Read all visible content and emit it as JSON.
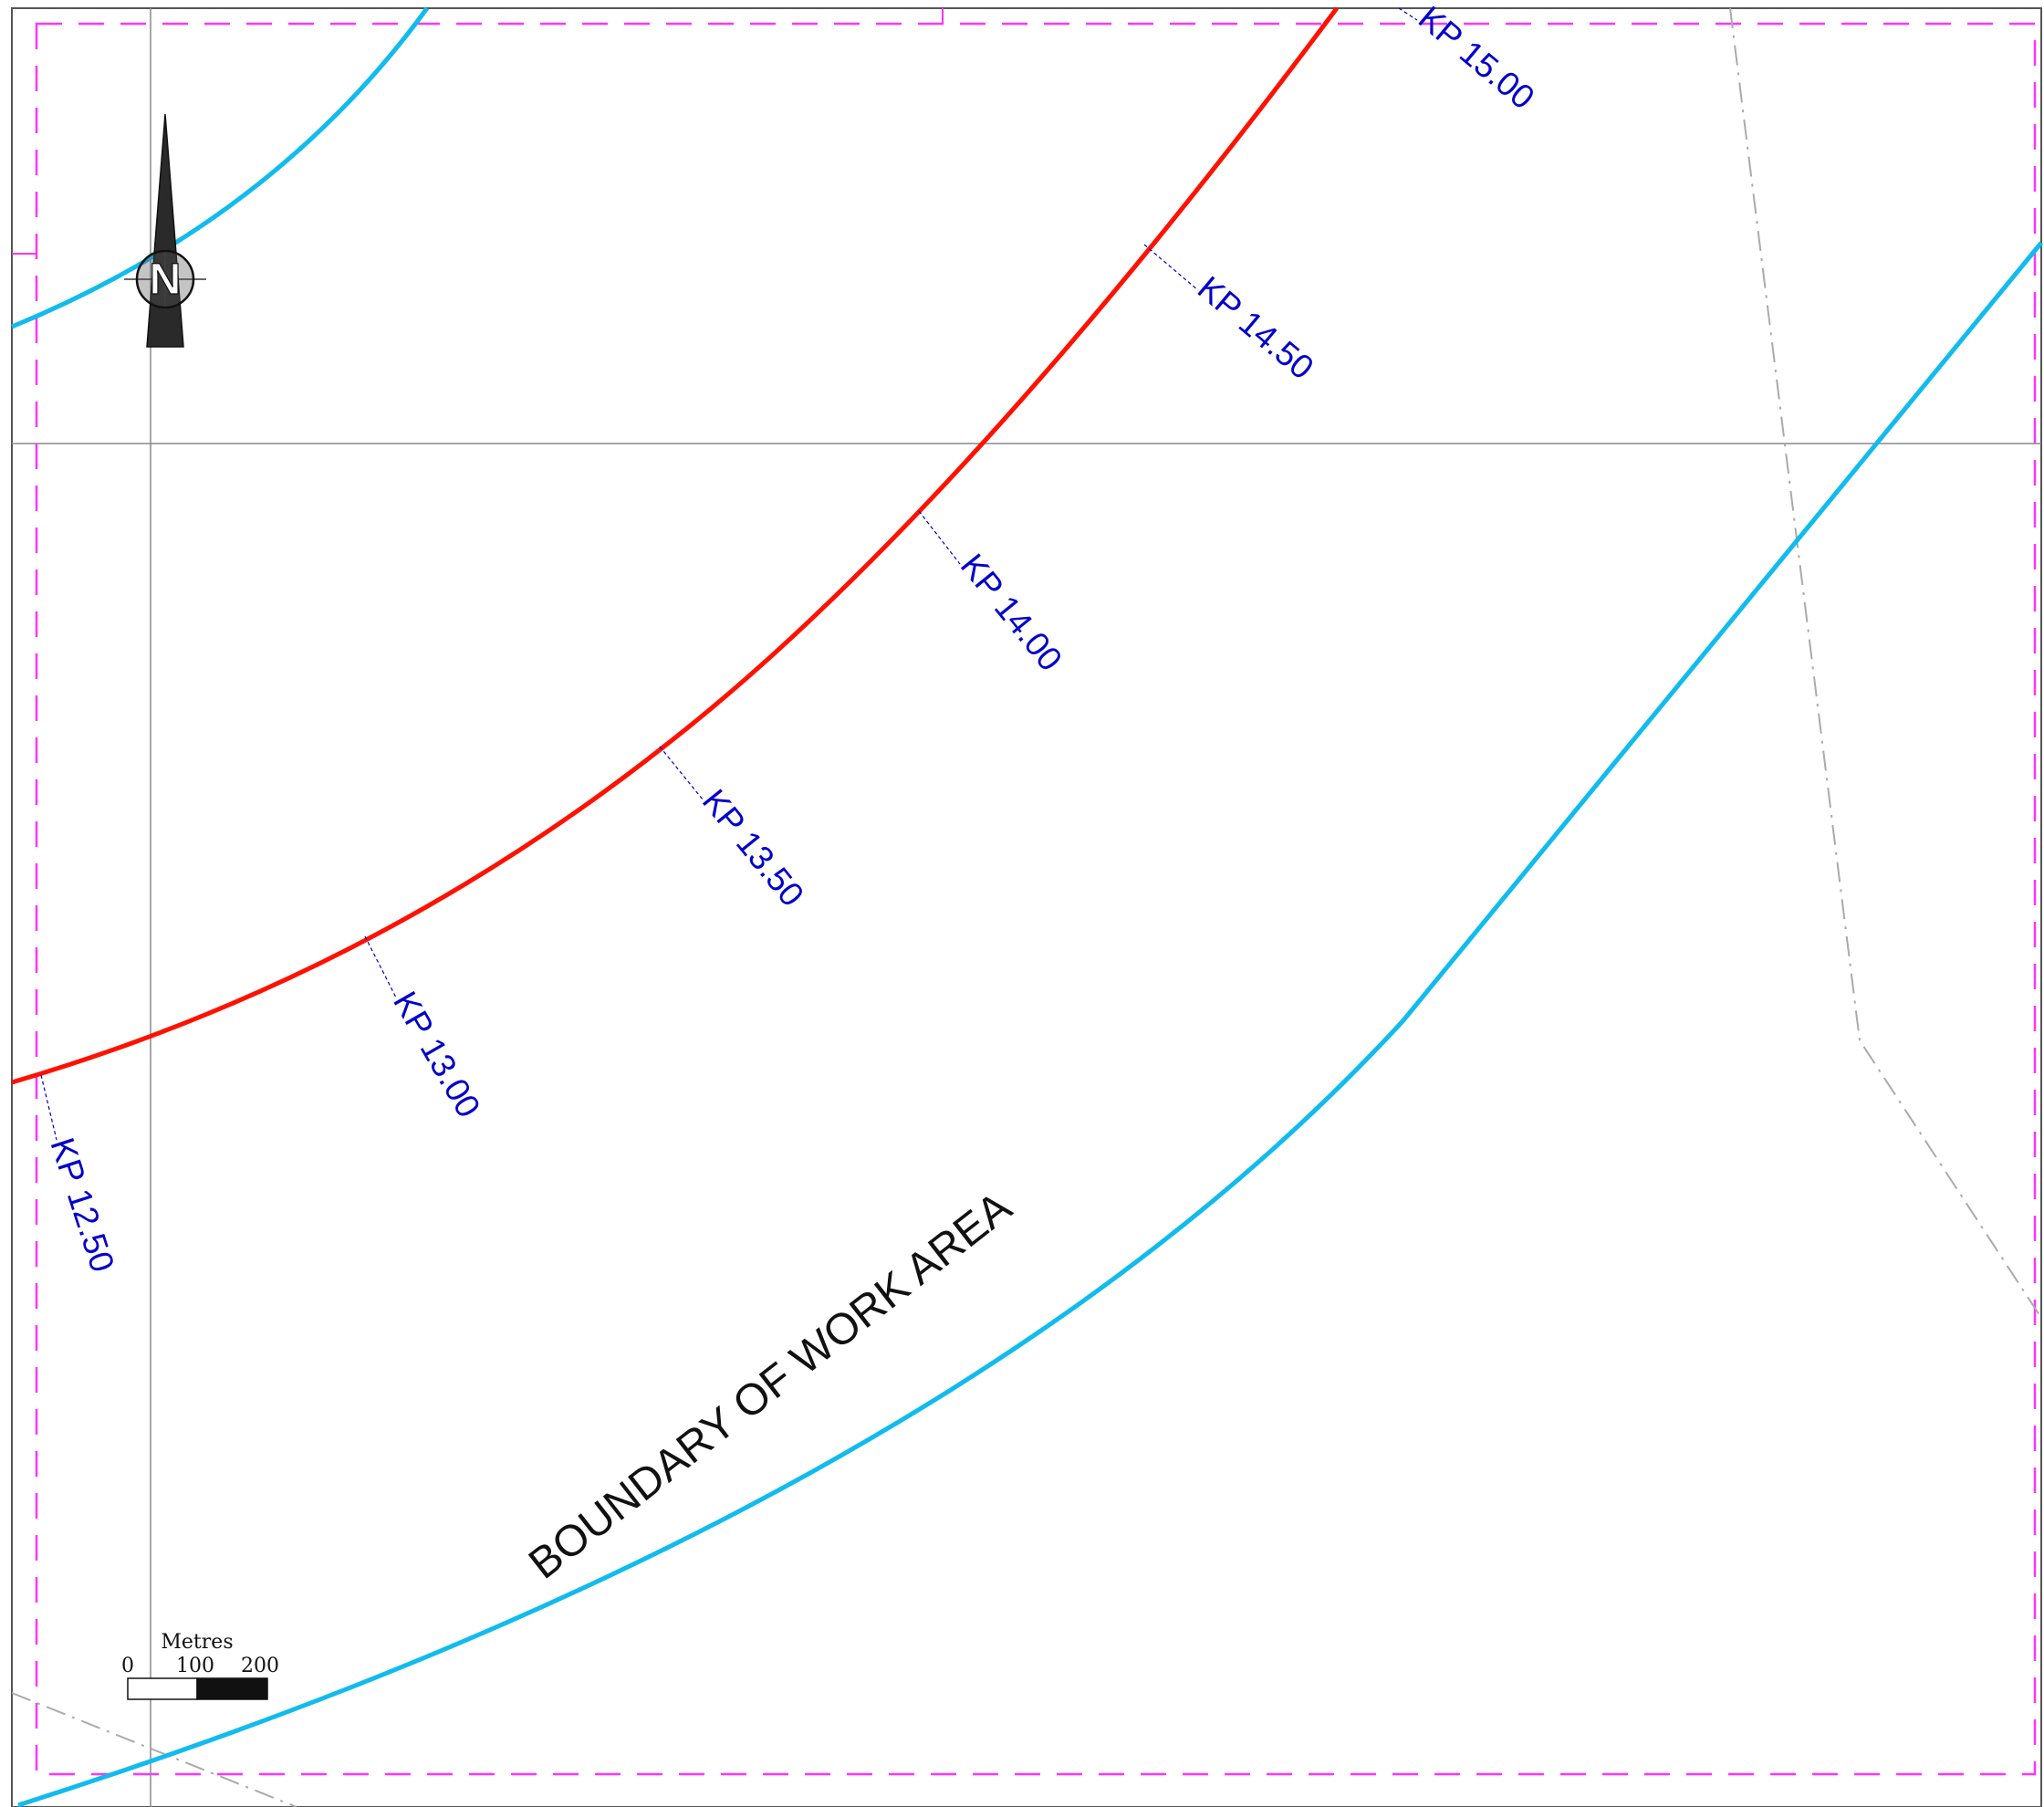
{
  "map": {
    "colors": {
      "background": "#ffffff",
      "frame": "#555555",
      "work_area_dash": "#ff33ff",
      "route": "#ff1100",
      "boundary": "#11bbee",
      "kp_text": "#0000cc",
      "grid": "#888888",
      "property_line": "#aaaaaa",
      "label": "#111111"
    },
    "kp_markers": [
      {
        "label": "KP 12.50"
      },
      {
        "label": "KP 13.00"
      },
      {
        "label": "KP 13.50"
      },
      {
        "label": "KP 14.00"
      },
      {
        "label": "KP 14.50"
      },
      {
        "label": "KP 15.00"
      }
    ],
    "boundary_label": "BOUNDARY OF WORK AREA",
    "north_arrow": {
      "letter": "N",
      "icon": "north-arrow-icon"
    },
    "scale_bar": {
      "unit": "Metres",
      "ticks": [
        "0",
        "100",
        "200"
      ]
    }
  }
}
